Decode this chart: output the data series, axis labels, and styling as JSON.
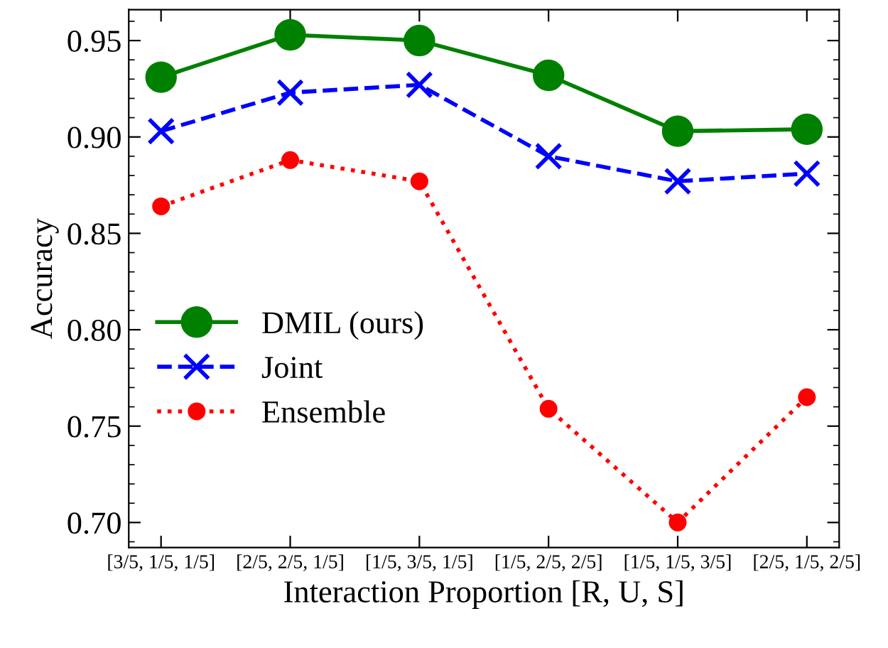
{
  "chart_data": {
    "type": "line",
    "xlabel": "Interaction Proportion [R, U, S]",
    "ylabel": "Accuracy",
    "categories": [
      "[3/5, 1/5, 1/5]",
      "[2/5, 2/5, 1/5]",
      "[1/5, 3/5, 1/5]",
      "[1/5, 2/5, 2/5]",
      "[1/5, 1/5, 3/5]",
      "[2/5, 1/5, 2/5]"
    ],
    "series": [
      {
        "name": "DMIL (ours)",
        "color": "#008000",
        "marker": "circle",
        "line_style": "solid",
        "values": [
          0.931,
          0.953,
          0.95,
          0.932,
          0.903,
          0.904
        ]
      },
      {
        "name": "Joint",
        "color": "#0000ff",
        "marker": "cross",
        "line_style": "dashed",
        "values": [
          0.903,
          0.923,
          0.927,
          0.89,
          0.877,
          0.881
        ]
      },
      {
        "name": "Ensemble",
        "color": "#ff0000",
        "marker": "circle",
        "line_style": "dotted",
        "values": [
          0.864,
          0.888,
          0.877,
          0.759,
          0.7,
          0.765
        ]
      }
    ],
    "ylim": [
      0.687,
      0.966
    ],
    "yticks": [
      {
        "value": 0.7,
        "label": "0.70"
      },
      {
        "value": 0.75,
        "label": "0.75"
      },
      {
        "value": 0.8,
        "label": "0.80"
      },
      {
        "value": 0.85,
        "label": "0.85"
      },
      {
        "value": 0.9,
        "label": "0.90"
      },
      {
        "value": 0.95,
        "label": "0.95"
      }
    ],
    "grid": false,
    "legend": "left"
  }
}
